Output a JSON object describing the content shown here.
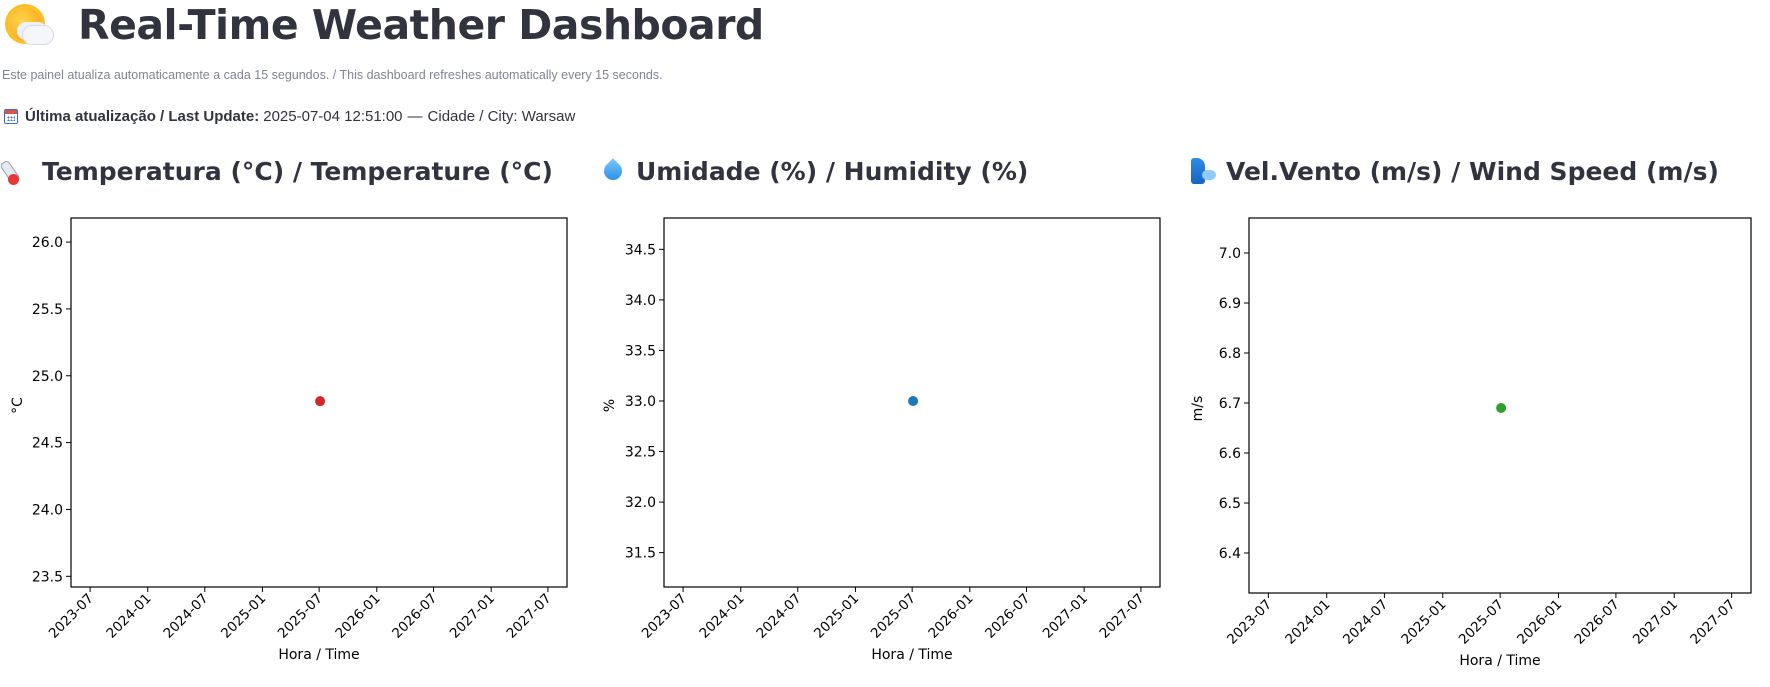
{
  "header": {
    "title": "Real-Time Weather Dashboard",
    "title_icon": "sun-behind-cloud-icon",
    "subtitle": "Este painel atualiza automaticamente a cada 15 segundos. / This dashboard refreshes automatically every 15 seconds."
  },
  "update": {
    "icon": "calendar-icon",
    "label": "Última atualização / Last Update:",
    "timestamp": "2025-07-04 12:51:00",
    "separator": "—",
    "city_text": "Cidade / City: Warsaw"
  },
  "charts": {
    "temperature": {
      "heading": "Temperatura (°C) / Temperature (°C)",
      "icon": "thermometer-icon"
    },
    "humidity": {
      "heading": "Umidade (%) / Humidity (%)",
      "icon": "droplet-icon"
    },
    "wind": {
      "heading": "Vel.Vento (m/s) / Wind Speed (m/s)",
      "icon": "wind-face-icon"
    }
  },
  "chart_data": [
    {
      "type": "scatter",
      "title": "Temperatura (°C) / Temperature (°C)",
      "xlabel": "Hora / Time",
      "ylabel": "°C",
      "x_ticks": [
        "2023-07",
        "2024-01",
        "2024-07",
        "2025-01",
        "2025-07",
        "2026-01",
        "2026-07",
        "2027-01",
        "2027-07"
      ],
      "y_ticks": [
        "23.5",
        "24.0",
        "24.5",
        "25.0",
        "25.5",
        "26.0"
      ],
      "ylim": [
        23.42,
        26.18
      ],
      "xlim": [
        "2023-05-01",
        "2027-08-31"
      ],
      "points": [
        {
          "x": "2025-07-04",
          "y": 24.81
        }
      ],
      "color": "#d62728",
      "grid": false
    },
    {
      "type": "scatter",
      "title": "Umidade (%) / Humidity (%)",
      "xlabel": "Hora / Time",
      "ylabel": "%",
      "x_ticks": [
        "2023-07",
        "2024-01",
        "2024-07",
        "2025-01",
        "2025-07",
        "2026-01",
        "2026-07",
        "2027-01",
        "2027-07"
      ],
      "y_ticks": [
        "31.5",
        "32.0",
        "32.5",
        "33.0",
        "33.5",
        "34.0",
        "34.5"
      ],
      "ylim": [
        31.16,
        34.81
      ],
      "xlim": [
        "2023-05-01",
        "2027-08-31"
      ],
      "points": [
        {
          "x": "2025-07-04",
          "y": 33.0
        }
      ],
      "color": "#1f77b4",
      "grid": false
    },
    {
      "type": "scatter",
      "title": "Vel.Vento (m/s) / Wind Speed (m/s)",
      "xlabel": "Hora / Time",
      "ylabel": "m/s",
      "x_ticks": [
        "2023-07",
        "2024-01",
        "2024-07",
        "2025-01",
        "2025-07",
        "2026-01",
        "2026-07",
        "2027-01",
        "2027-07"
      ],
      "y_ticks": [
        "6.4",
        "6.5",
        "6.6",
        "6.7",
        "6.8",
        "6.9",
        "7.0"
      ],
      "ylim": [
        6.32,
        7.07
      ],
      "xlim": [
        "2023-05-01",
        "2027-08-31"
      ],
      "points": [
        {
          "x": "2025-07-04",
          "y": 6.69
        }
      ],
      "color": "#2ca02c",
      "grid": false
    }
  ]
}
